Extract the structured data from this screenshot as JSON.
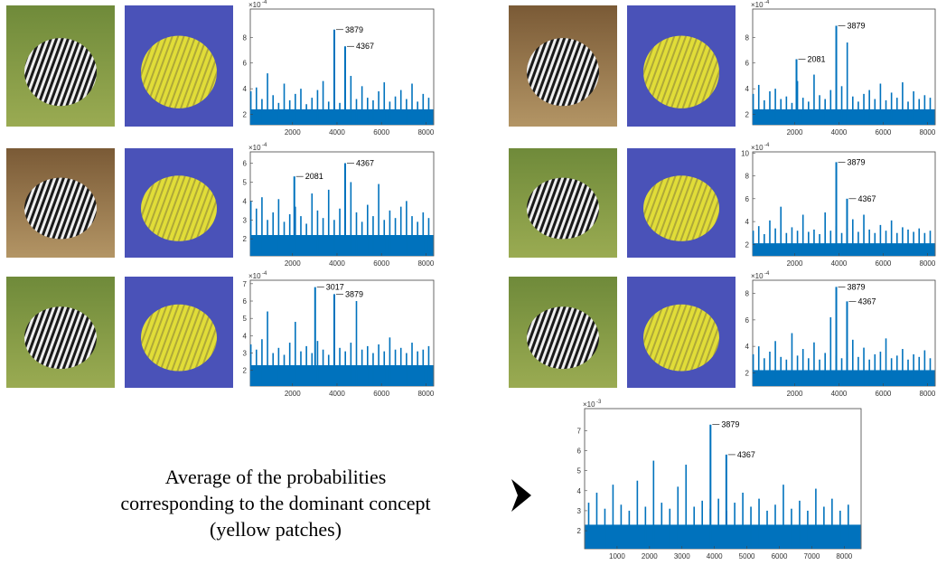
{
  "chart_data": [
    {
      "type": "bar",
      "y_exponent_base": "×10",
      "y_exponent_power": "-4",
      "xlim": [
        100,
        8350
      ],
      "xticks": [
        2000,
        4000,
        6000,
        8000
      ],
      "ylim": [
        1.2,
        10.2
      ],
      "yticks": [
        2,
        4,
        6,
        8
      ],
      "color": "#0072bd",
      "floor": 2.4,
      "x": [
        125,
        375,
        625,
        875,
        1125,
        1375,
        1625,
        1875,
        2125,
        2375,
        2625,
        2875,
        3125,
        3375,
        3625,
        3875,
        4125,
        4375,
        4625,
        4875,
        5125,
        5375,
        5625,
        5875,
        6125,
        6375,
        6625,
        6875,
        7125,
        7375,
        7625,
        7875,
        8125
      ],
      "values": [
        3.8,
        4.1,
        3.2,
        5.2,
        3.5,
        2.9,
        4.4,
        3.1,
        3.6,
        4.0,
        2.8,
        3.3,
        3.9,
        4.6,
        3.0,
        3.4,
        2.9,
        3.7,
        5.0,
        3.2,
        4.2,
        3.3,
        3.1,
        3.8,
        4.5,
        3.0,
        3.4,
        3.9,
        3.2,
        4.4,
        3.0,
        3.6,
        3.3
      ],
      "annotations": [
        {
          "text": "3879",
          "x": 3879,
          "y": 8.6
        },
        {
          "text": "4367",
          "x": 4367,
          "y": 7.3
        }
      ]
    },
    {
      "type": "bar",
      "y_exponent_base": "×10",
      "y_exponent_power": "-4",
      "xlim": [
        100,
        8350
      ],
      "xticks": [
        2000,
        4000,
        6000,
        8000
      ],
      "ylim": [
        1.1,
        6.6
      ],
      "yticks": [
        2,
        3,
        4,
        5,
        6
      ],
      "color": "#0072bd",
      "floor": 2.2,
      "x": [
        125,
        375,
        625,
        875,
        1125,
        1375,
        1625,
        1875,
        2125,
        2375,
        2625,
        2875,
        3125,
        3375,
        3625,
        3875,
        4125,
        4375,
        4625,
        4875,
        5125,
        5375,
        5625,
        5875,
        6125,
        6375,
        6625,
        6875,
        7125,
        7375,
        7625,
        7875,
        8125
      ],
      "values": [
        4.0,
        3.6,
        4.2,
        3.0,
        3.4,
        4.1,
        2.9,
        3.3,
        3.7,
        3.2,
        2.8,
        4.4,
        3.5,
        3.1,
        4.6,
        3.0,
        3.6,
        3.3,
        5.0,
        3.4,
        2.9,
        3.8,
        3.2,
        4.9,
        3.0,
        3.5,
        3.1,
        3.7,
        4.0,
        3.2,
        2.9,
        3.4,
        3.1
      ],
      "annotations": [
        {
          "text": "2081",
          "x": 2081,
          "y": 5.3
        },
        {
          "text": "4367",
          "x": 4367,
          "y": 6.0
        }
      ]
    },
    {
      "type": "bar",
      "y_exponent_base": "×10",
      "y_exponent_power": "-4",
      "xlim": [
        100,
        8350
      ],
      "xticks": [
        2000,
        4000,
        6000,
        8000
      ],
      "ylim": [
        1.1,
        7.2
      ],
      "yticks": [
        2,
        3,
        4,
        5,
        6,
        7
      ],
      "color": "#0072bd",
      "floor": 2.3,
      "x": [
        125,
        375,
        625,
        875,
        1125,
        1375,
        1625,
        1875,
        2125,
        2375,
        2625,
        2875,
        3125,
        3375,
        3625,
        3875,
        4125,
        4375,
        4625,
        4875,
        5125,
        5375,
        5625,
        5875,
        6125,
        6375,
        6625,
        6875,
        7125,
        7375,
        7625,
        7875,
        8125
      ],
      "values": [
        3.5,
        3.2,
        3.8,
        5.4,
        3.0,
        3.3,
        2.9,
        3.6,
        4.8,
        3.1,
        3.4,
        3.0,
        3.7,
        3.2,
        2.9,
        5.9,
        3.3,
        3.1,
        3.6,
        6.0,
        3.2,
        3.4,
        3.0,
        3.5,
        3.1,
        3.9,
        3.2,
        3.3,
        3.0,
        3.6,
        3.1,
        3.2,
        3.4
      ],
      "annotations": [
        {
          "text": "3017",
          "x": 3017,
          "y": 6.8
        },
        {
          "text": "3879",
          "x": 3879,
          "y": 6.4
        }
      ]
    },
    {
      "type": "bar",
      "y_exponent_base": "×10",
      "y_exponent_power": "-4",
      "xlim": [
        100,
        8350
      ],
      "xticks": [
        2000,
        4000,
        6000,
        8000
      ],
      "ylim": [
        1.2,
        10.2
      ],
      "yticks": [
        2,
        4,
        6,
        8
      ],
      "color": "#0072bd",
      "floor": 2.4,
      "x": [
        125,
        375,
        625,
        875,
        1125,
        1375,
        1625,
        1875,
        2125,
        2375,
        2625,
        2875,
        3125,
        3375,
        3625,
        3875,
        4125,
        4375,
        4625,
        4875,
        5125,
        5375,
        5625,
        5875,
        6125,
        6375,
        6625,
        6875,
        7125,
        7375,
        7625,
        7875,
        8125
      ],
      "values": [
        3.6,
        4.3,
        3.1,
        3.8,
        4.0,
        3.2,
        3.4,
        2.9,
        4.6,
        3.3,
        3.0,
        5.1,
        3.5,
        3.2,
        3.9,
        3.1,
        4.2,
        7.6,
        3.4,
        3.0,
        3.6,
        3.9,
        3.2,
        4.4,
        3.1,
        3.7,
        3.3,
        4.5,
        3.0,
        3.8,
        3.2,
        3.5,
        3.3
      ],
      "annotations": [
        {
          "text": "2081",
          "x": 2081,
          "y": 6.3
        },
        {
          "text": "3879",
          "x": 3879,
          "y": 8.9
        }
      ]
    },
    {
      "type": "bar",
      "y_exponent_base": "×10",
      "y_exponent_power": "-4",
      "xlim": [
        100,
        8350
      ],
      "xticks": [
        2000,
        4000,
        6000,
        8000
      ],
      "ylim": [
        1.0,
        10.1
      ],
      "yticks": [
        2,
        4,
        6,
        8,
        10
      ],
      "color": "#0072bd",
      "floor": 2.1,
      "x": [
        125,
        375,
        625,
        875,
        1125,
        1375,
        1625,
        1875,
        2125,
        2375,
        2625,
        2875,
        3125,
        3375,
        3625,
        3875,
        4125,
        4375,
        4625,
        4875,
        5125,
        5375,
        5625,
        5875,
        6125,
        6375,
        6625,
        6875,
        7125,
        7375,
        7625,
        7875,
        8125
      ],
      "values": [
        3.2,
        3.6,
        2.9,
        4.1,
        3.4,
        5.3,
        3.0,
        3.5,
        3.2,
        4.6,
        3.1,
        3.3,
        2.9,
        4.8,
        3.2,
        3.6,
        3.0,
        3.4,
        4.2,
        3.1,
        4.6,
        3.3,
        3.0,
        3.7,
        3.2,
        4.1,
        3.0,
        3.5,
        3.3,
        3.1,
        3.4,
        3.0,
        3.2
      ],
      "annotations": [
        {
          "text": "3879",
          "x": 3879,
          "y": 9.2
        },
        {
          "text": "4367",
          "x": 4367,
          "y": 6.0
        }
      ]
    },
    {
      "type": "bar",
      "y_exponent_base": "×10",
      "y_exponent_power": "-4",
      "xlim": [
        100,
        8350
      ],
      "xticks": [
        2000,
        4000,
        6000,
        8000
      ],
      "ylim": [
        1.0,
        9.0
      ],
      "yticks": [
        2,
        4,
        6,
        8
      ],
      "color": "#0072bd",
      "floor": 2.2,
      "x": [
        125,
        375,
        625,
        875,
        1125,
        1375,
        1625,
        1875,
        2125,
        2375,
        2625,
        2875,
        3125,
        3375,
        3625,
        3875,
        4125,
        4375,
        4625,
        4875,
        5125,
        5375,
        5625,
        5875,
        6125,
        6375,
        6625,
        6875,
        7125,
        7375,
        7625,
        7875,
        8125
      ],
      "values": [
        3.4,
        4.0,
        3.1,
        3.6,
        4.4,
        3.2,
        3.0,
        5.0,
        3.3,
        3.8,
        3.1,
        4.3,
        3.0,
        3.5,
        6.2,
        3.3,
        3.1,
        3.6,
        4.5,
        3.2,
        3.9,
        3.0,
        3.4,
        3.6,
        4.6,
        3.1,
        3.3,
        3.8,
        3.0,
        3.4,
        3.2,
        3.7,
        3.1
      ],
      "annotations": [
        {
          "text": "3879",
          "x": 3879,
          "y": 8.5
        },
        {
          "text": "4367",
          "x": 4367,
          "y": 7.4
        }
      ]
    },
    {
      "type": "bar",
      "y_exponent_base": "×10",
      "y_exponent_power": "-3",
      "xlim": [
        0,
        8520
      ],
      "xticks": [
        1000,
        2000,
        3000,
        4000,
        5000,
        6000,
        7000,
        8000
      ],
      "ylim": [
        1.1,
        8.1
      ],
      "yticks": [
        2,
        3,
        4,
        5,
        6,
        7
      ],
      "color": "#0072bd",
      "floor": 2.3,
      "x": [
        125,
        375,
        625,
        875,
        1125,
        1375,
        1625,
        1875,
        2125,
        2375,
        2625,
        2875,
        3125,
        3375,
        3625,
        3875,
        4125,
        4375,
        4625,
        4875,
        5125,
        5375,
        5625,
        5875,
        6125,
        6375,
        6625,
        6875,
        7125,
        7375,
        7625,
        7875,
        8125
      ],
      "values": [
        3.4,
        3.9,
        3.1,
        4.3,
        3.3,
        3.0,
        4.5,
        3.2,
        5.5,
        3.4,
        3.1,
        4.2,
        5.3,
        3.2,
        3.5,
        3.1,
        3.6,
        3.0,
        3.4,
        3.9,
        3.2,
        3.6,
        3.0,
        3.3,
        4.3,
        3.1,
        3.5,
        3.0,
        4.1,
        3.2,
        3.6,
        3.0,
        3.3
      ],
      "annotations": [
        {
          "text": "3879",
          "x": 3879,
          "y": 7.3
        },
        {
          "text": "4367",
          "x": 4367,
          "y": 5.8
        }
      ]
    }
  ],
  "caption": {
    "lines": [
      "Average of the probabilities",
      "corresponding to the dominant concept",
      "(yellow patches)"
    ]
  }
}
